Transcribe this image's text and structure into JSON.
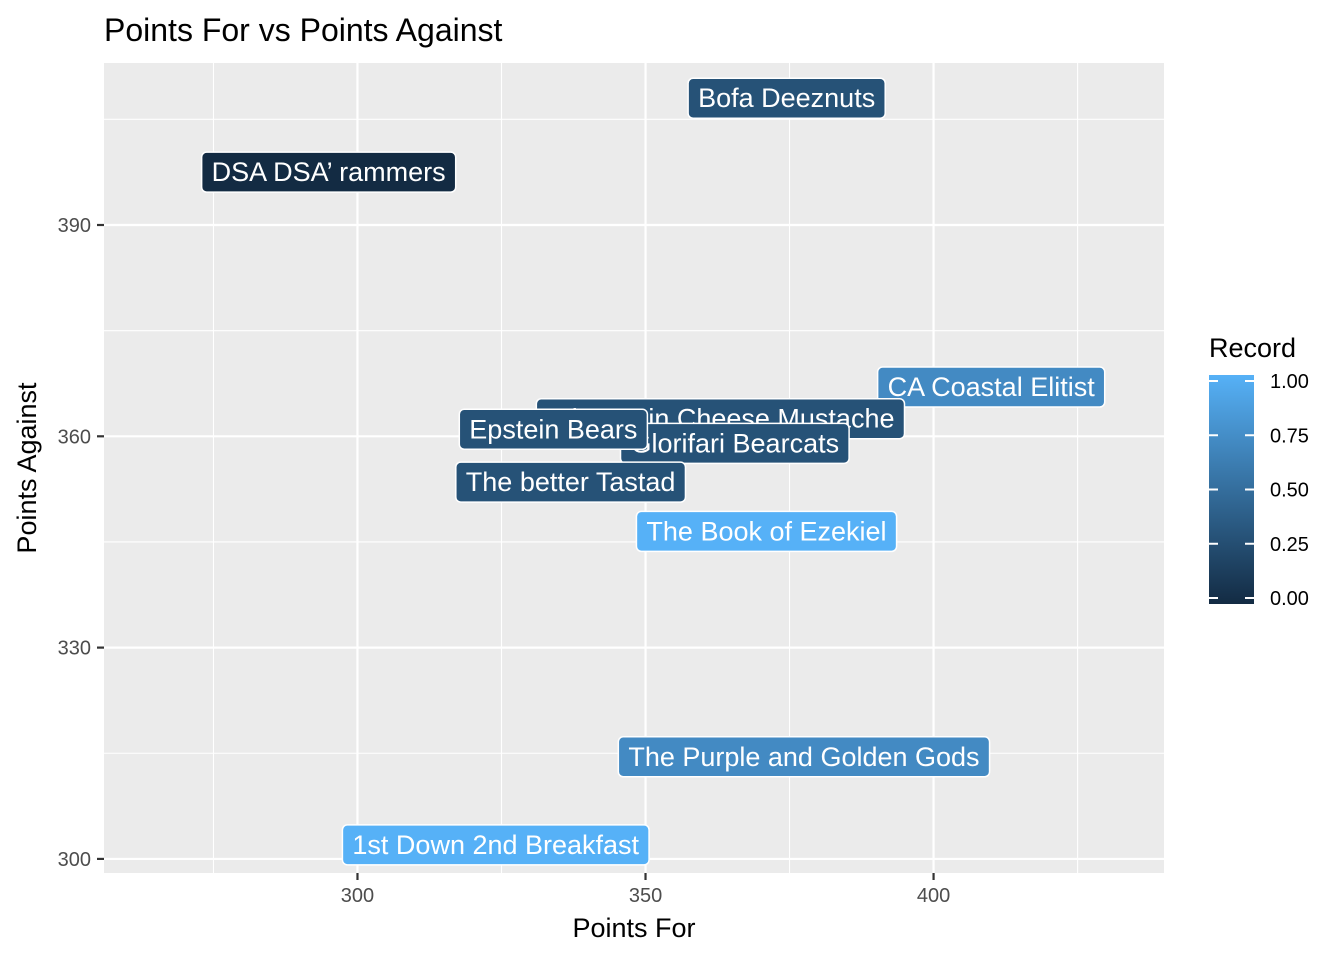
{
  "chart_data": {
    "type": "scatter",
    "title": "Points For vs Points Against",
    "xlabel": "Points For",
    "ylabel": "Points Against",
    "xlim": [
      256,
      440
    ],
    "ylim": [
      298,
      413
    ],
    "x_ticks": [
      300,
      350,
      400
    ],
    "y_ticks": [
      300,
      330,
      360,
      390
    ],
    "grid": true,
    "legend": {
      "title": "Record",
      "placement": "right",
      "range": [
        0,
        1
      ],
      "ticks": [
        "1.00",
        "0.75",
        "0.50",
        "0.25",
        "0.00"
      ],
      "low_color": "#132b43",
      "high_color": "#56b1f7"
    },
    "points": [
      {
        "label": "Bofa Deeznuts",
        "x": 374.5,
        "y": 408,
        "record": 0.29
      },
      {
        "label": "DSA DSA’ rammers",
        "x": 295,
        "y": 397.5,
        "record": 0.0
      },
      {
        "label": "CA Coastal Elitist",
        "x": 410,
        "y": 367,
        "record": 0.71
      },
      {
        "label": "Wisconsin Cheese Mustache",
        "x": 363,
        "y": 362.5,
        "record": 0.29
      },
      {
        "label": "Glorifari Bearcats",
        "x": 365.5,
        "y": 359,
        "record": 0.29
      },
      {
        "label": "Epstein Bears",
        "x": 334,
        "y": 361,
        "record": 0.29
      },
      {
        "label": "The better Tastad",
        "x": 337,
        "y": 353.5,
        "record": 0.29
      },
      {
        "label": "The Book of Ezekiel",
        "x": 371,
        "y": 346.5,
        "record": 1.0
      },
      {
        "label": "The Purple and Golden Gods",
        "x": 377.5,
        "y": 314.5,
        "record": 0.71
      },
      {
        "label": "1st Down 2nd Breakfast",
        "x": 324,
        "y": 302,
        "record": 1.0
      }
    ]
  }
}
